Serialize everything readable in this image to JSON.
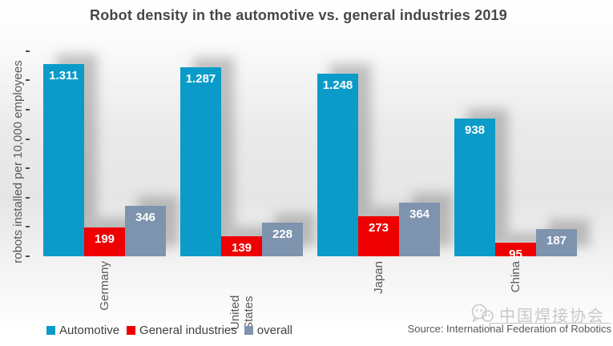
{
  "chart_data": {
    "type": "bar",
    "title": "Robot density in the automotive vs. general industries 2019",
    "ylabel": "robots installed per 10,000 employees",
    "xlabel": "",
    "categories": [
      "Germany",
      "United States",
      "Japan",
      "China"
    ],
    "series": [
      {
        "name": "Automotive",
        "color": "#0b9bc8",
        "values": [
          1311,
          1287,
          1248,
          938
        ],
        "value_labels": [
          "1.311",
          "1.287",
          "1.248",
          "938"
        ]
      },
      {
        "name": "General industries",
        "color": "#ee0000",
        "values": [
          199,
          139,
          273,
          95
        ],
        "value_labels": [
          "199",
          "139",
          "273",
          "95"
        ]
      },
      {
        "name": "overall",
        "color": "#7e93ae",
        "values": [
          346,
          228,
          364,
          187
        ],
        "value_labels": [
          "346",
          "228",
          "364",
          "187"
        ]
      }
    ],
    "ylim": [
      0,
      1400
    ],
    "y_tick_step": 200,
    "y_tick_labels_visible": false,
    "grid": false,
    "legend_position": "bottom"
  },
  "source": "Source: International Federation of Robotics",
  "watermark": {
    "text": "中国焊接协会",
    "icon": "chat-bubbles-icon"
  },
  "colors": {
    "title_text": "#474747",
    "axis_text": "#595959",
    "bar_value_text": "#ffffff",
    "watermark_text": "#c8c8c8"
  }
}
